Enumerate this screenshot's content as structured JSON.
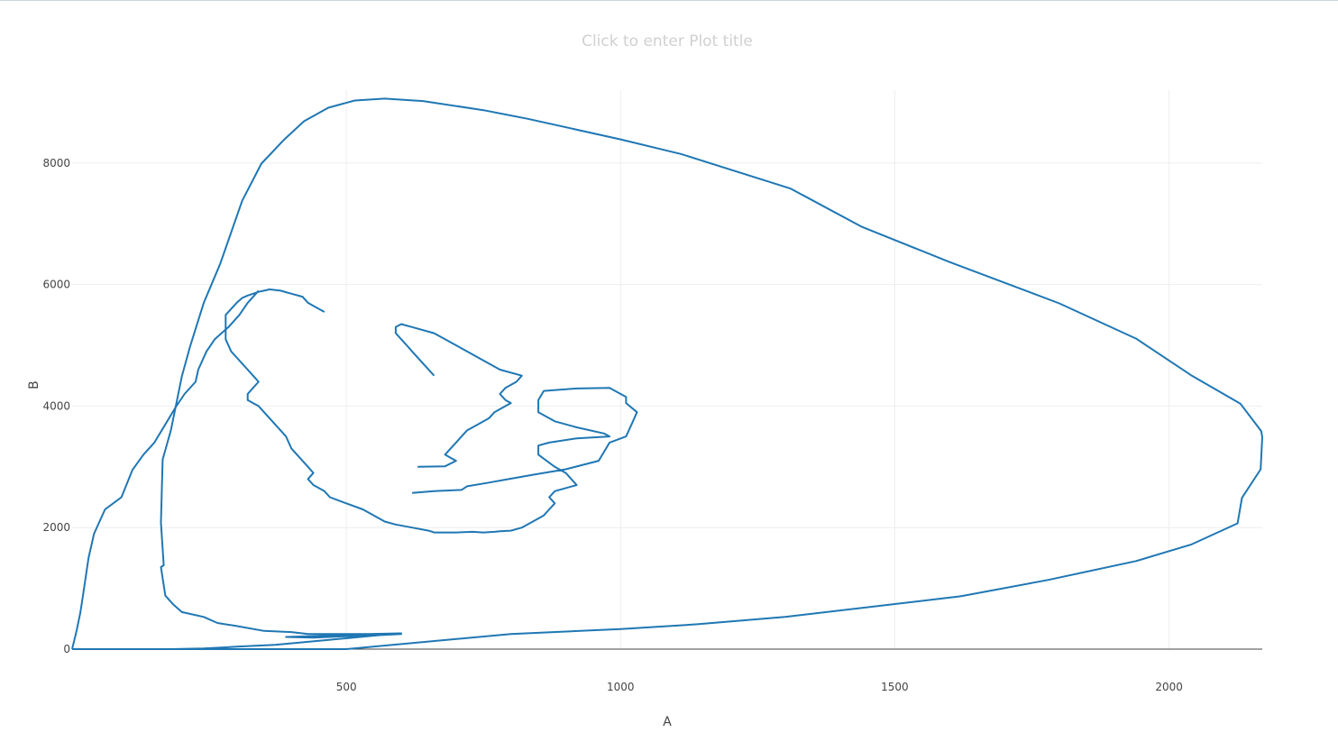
{
  "chart_data": {
    "type": "line",
    "title": "Click to enter Plot title",
    "xlabel": "A",
    "ylabel": "B",
    "xlim": [
      0,
      2170
    ],
    "ylim": [
      0,
      9200
    ],
    "x_ticks": [
      500,
      1000,
      1500,
      2000
    ],
    "x_tick_labels": [
      "500",
      "1000",
      "1500",
      "2000"
    ],
    "y_ticks": [
      0,
      2000,
      4000,
      6000,
      8000
    ],
    "y_tick_labels": [
      "0",
      "2000",
      "4000",
      "6000",
      "8000"
    ],
    "grid": true,
    "line_color": "#1f77b4",
    "series": [
      {
        "x": [
          0,
          50,
          200,
          335,
          500,
          800,
          1000,
          1140,
          1300,
          1620,
          1780,
          1940,
          2040,
          2125,
          2133,
          2167,
          2170,
          2168,
          2130,
          2040,
          1940,
          1800,
          1600,
          1440,
          1310,
          1110,
          1000,
          830,
          750,
          640,
          570,
          515,
          467,
          423,
          387,
          345,
          310,
          270,
          240,
          215,
          200,
          180,
          165,
          162,
          167,
          162,
          170,
          185,
          200,
          240,
          265,
          300,
          350,
          400,
          430,
          500,
          540,
          600,
          390,
          440,
          600,
          560,
          430,
          370,
          300,
          240,
          180,
          165,
          148,
          142,
          130,
          115,
          95,
          83,
          72,
          61,
          58,
          55,
          45,
          26,
          20,
          16,
          12,
          8,
          0
        ],
        "y": [
          0,
          0,
          0,
          0,
          0,
          250,
          330,
          410,
          530,
          870,
          1140,
          1450,
          1720,
          2070,
          2490,
          2960,
          3490,
          3590,
          4040,
          4510,
          5110,
          5690,
          6370,
          6950,
          7580,
          8150,
          8390,
          8730,
          8870,
          9020,
          9060,
          9030,
          8910,
          8690,
          8390,
          7990,
          7380,
          6340,
          5700,
          4980,
          4490,
          3600,
          3120,
          2080,
          1380,
          1350,
          880,
          730,
          610,
          530,
          430,
          380,
          300,
          280,
          250,
          250,
          250,
          260,
          200,
          190,
          250,
          230,
          120,
          70,
          40,
          10,
          0,
          0,
          0,
          0,
          0,
          0,
          0,
          0,
          0,
          0,
          0,
          0,
          0,
          0,
          0,
          0,
          0,
          0,
          0
        ]
      },
      {
        "x": [
          0,
          8,
          15,
          20,
          25,
          30,
          40,
          60,
          90,
          110,
          130,
          150,
          170,
          190,
          205,
          225,
          230,
          245,
          260,
          285,
          305,
          320,
          340
        ],
        "y": [
          0,
          300,
          600,
          900,
          1200,
          1500,
          1900,
          2300,
          2500,
          2950,
          3200,
          3400,
          3700,
          4000,
          4200,
          4400,
          4600,
          4900,
          5100,
          5300,
          5500,
          5700,
          5900
        ]
      },
      {
        "x": [
          620,
          660,
          710,
          720,
          760,
          790,
          840,
          900,
          960,
          980,
          1010,
          1020,
          1030,
          1010,
          1010,
          990,
          980,
          920,
          860,
          850,
          850,
          880,
          920,
          970,
          980,
          920,
          870,
          850,
          850,
          880,
          900,
          920,
          880,
          870,
          880,
          870,
          860,
          840,
          820,
          800,
          780,
          770,
          750,
          730,
          700,
          660,
          650,
          620,
          590,
          570,
          550,
          530,
          500,
          470,
          460,
          450,
          440,
          430,
          440,
          430,
          420,
          410,
          400,
          390,
          380,
          370,
          360,
          350,
          340,
          330,
          320,
          320,
          330,
          340,
          330,
          320,
          310,
          300,
          290,
          280,
          280,
          280,
          290,
          300,
          310,
          320,
          330,
          340,
          350,
          360,
          380,
          400,
          420,
          430,
          440,
          450,
          460
        ],
        "y": [
          2570,
          2600,
          2620,
          2680,
          2740,
          2790,
          2870,
          2960,
          3100,
          3400,
          3500,
          3700,
          3900,
          4050,
          4150,
          4250,
          4300,
          4290,
          4250,
          4100,
          3900,
          3750,
          3650,
          3550,
          3500,
          3470,
          3400,
          3350,
          3200,
          3000,
          2900,
          2700,
          2600,
          2500,
          2400,
          2300,
          2200,
          2100,
          2000,
          1950,
          1940,
          1930,
          1920,
          1930,
          1920,
          1920,
          1950,
          2000,
          2050,
          2100,
          2200,
          2300,
          2400,
          2500,
          2600,
          2650,
          2700,
          2800,
          2900,
          3000,
          3100,
          3200,
          3300,
          3500,
          3600,
          3700,
          3800,
          3900,
          4000,
          4050,
          4100,
          4200,
          4300,
          4400,
          4500,
          4600,
          4700,
          4800,
          4900,
          5100,
          5300,
          5500,
          5600,
          5700,
          5780,
          5820,
          5850,
          5880,
          5900,
          5920,
          5900,
          5850,
          5800,
          5700,
          5650,
          5600,
          5550
        ]
      },
      {
        "x": [
          630,
          680,
          700,
          690,
          680,
          690,
          700,
          710,
          720,
          740,
          760,
          770,
          790,
          800,
          790,
          780,
          790,
          810,
          820,
          780,
          760,
          740,
          720,
          700,
          680,
          660,
          620,
          600,
          590,
          590,
          600,
          610,
          620,
          640,
          660
        ],
        "y": [
          3000,
          3010,
          3100,
          3150,
          3200,
          3300,
          3400,
          3500,
          3600,
          3700,
          3800,
          3900,
          4000,
          4050,
          4100,
          4200,
          4300,
          4400,
          4500,
          4600,
          4700,
          4800,
          4900,
          5000,
          5100,
          5200,
          5300,
          5350,
          5300,
          5200,
          5100,
          5000,
          4900,
          4700,
          4500
        ]
      }
    ]
  }
}
